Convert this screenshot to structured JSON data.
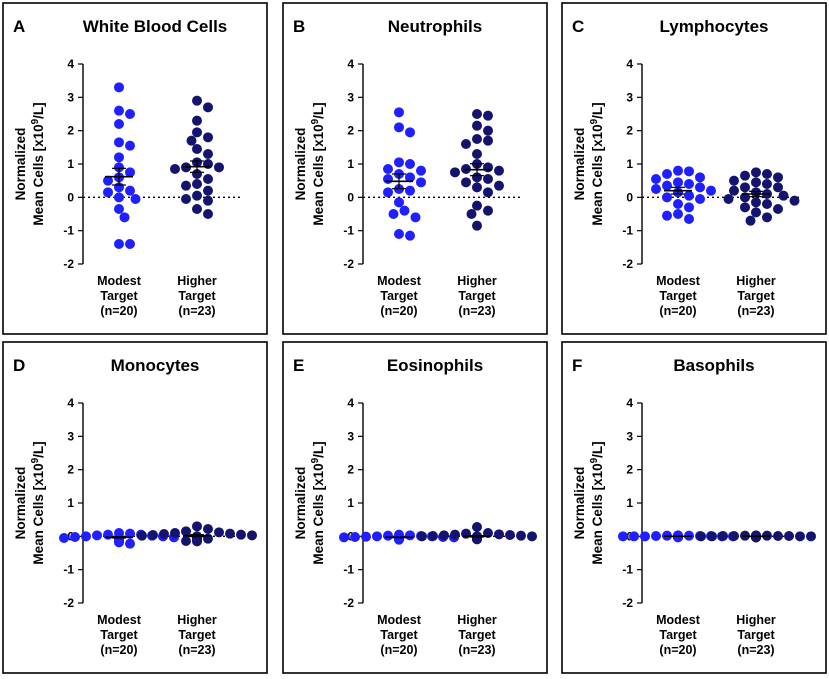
{
  "colors": {
    "modest": "#1f1fff",
    "higher": "#14146e"
  },
  "chart_data": [
    {
      "type": "scatter",
      "letter": "A",
      "title": "White Blood Cells",
      "ylabel": [
        "Normalized",
        "Mean Cells [x10",
        "9",
        "/L]"
      ],
      "ylim": [
        -2,
        4
      ],
      "yticks": [
        "4",
        "3",
        "2",
        "1",
        "0",
        "-1",
        "-2"
      ],
      "categories": [
        [
          "Modest",
          "Target",
          "(n=20)"
        ],
        [
          "Higher",
          "Target",
          "(n=23)"
        ]
      ],
      "series": [
        {
          "name": "Modest Target",
          "mean": 0.62,
          "sem": 0.25,
          "values": [
            3.3,
            2.6,
            2.5,
            2.2,
            1.65,
            1.55,
            1.2,
            0.9,
            0.75,
            0.6,
            0.5,
            0.3,
            0.2,
            0.15,
            0.0,
            -0.05,
            -0.35,
            -0.6,
            -1.4,
            -1.4
          ]
        },
        {
          "name": "Higher Target",
          "mean": 0.92,
          "sem": 0.17,
          "values": [
            2.9,
            2.7,
            2.3,
            1.95,
            1.8,
            1.7,
            1.45,
            1.3,
            1.05,
            1.0,
            0.9,
            0.9,
            0.85,
            0.7,
            0.55,
            0.4,
            0.35,
            0.2,
            0.05,
            -0.05,
            -0.1,
            -0.35,
            -0.5
          ]
        }
      ]
    },
    {
      "type": "scatter",
      "letter": "B",
      "title": "Neutrophils",
      "ylabel": [
        "Normalized",
        "Mean Cells [x10",
        "9",
        "/L]"
      ],
      "ylim": [
        -2,
        4
      ],
      "yticks": [
        "4",
        "3",
        "2",
        "1",
        "0",
        "-1",
        "-2"
      ],
      "categories": [
        [
          "Modest",
          "Target",
          "(n=20)"
        ],
        [
          "Higher",
          "Target",
          "(n=23)"
        ]
      ],
      "series": [
        {
          "name": "Modest Target",
          "mean": 0.48,
          "sem": 0.22,
          "values": [
            2.55,
            2.1,
            1.95,
            1.05,
            1.0,
            0.85,
            0.8,
            0.7,
            0.6,
            0.55,
            0.45,
            0.25,
            0.2,
            0.15,
            -0.15,
            -0.4,
            -0.5,
            -0.6,
            -1.1,
            -1.15
          ]
        },
        {
          "name": "Higher Target",
          "mean": 0.83,
          "sem": 0.18,
          "values": [
            2.5,
            2.45,
            2.15,
            2.0,
            1.75,
            1.7,
            1.6,
            1.3,
            1.0,
            0.9,
            0.85,
            0.8,
            0.75,
            0.6,
            0.55,
            0.45,
            0.35,
            0.3,
            0.15,
            -0.25,
            -0.4,
            -0.5,
            -0.85
          ]
        }
      ]
    },
    {
      "type": "scatter",
      "letter": "C",
      "title": "Lymphocytes",
      "ylabel": [
        "Normalized",
        "Mean Cells [x10",
        "9",
        "/L]"
      ],
      "ylim": [
        -2,
        4
      ],
      "yticks": [
        "4",
        "3",
        "2",
        "1",
        "0",
        "-1",
        "-2"
      ],
      "categories": [
        [
          "Modest",
          "Target",
          "(n=20)"
        ],
        [
          "Higher",
          "Target",
          "(n=23)"
        ]
      ],
      "series": [
        {
          "name": "Modest Target",
          "mean": 0.2,
          "sem": 0.1,
          "values": [
            0.8,
            0.78,
            0.7,
            0.6,
            0.55,
            0.45,
            0.4,
            0.35,
            0.3,
            0.25,
            0.2,
            0.15,
            0.05,
            0.0,
            -0.05,
            -0.2,
            -0.3,
            -0.5,
            -0.55,
            -0.65
          ]
        },
        {
          "name": "Higher Target",
          "mean": 0.1,
          "sem": 0.08,
          "values": [
            0.75,
            0.7,
            0.65,
            0.6,
            0.5,
            0.45,
            0.4,
            0.3,
            0.3,
            0.2,
            0.15,
            0.1,
            0.05,
            0.0,
            -0.05,
            -0.1,
            -0.15,
            -0.2,
            -0.3,
            -0.35,
            -0.45,
            -0.6,
            -0.7
          ]
        }
      ]
    },
    {
      "type": "scatter",
      "letter": "D",
      "title": "Monocytes",
      "ylabel": [
        "Normalized",
        "Mean Cells [x10",
        "9",
        "/L]"
      ],
      "ylim": [
        -2,
        4
      ],
      "yticks": [
        "4",
        "3",
        "2",
        "1",
        "0",
        "-1",
        "-2"
      ],
      "categories": [
        [
          "Modest",
          "Target",
          "(n=20)"
        ],
        [
          "Higher",
          "Target",
          "(n=23)"
        ]
      ],
      "series": [
        {
          "name": "Modest Target",
          "mean": -0.03,
          "sem": 0.02,
          "values": [
            0.1,
            0.08,
            0.05,
            0.05,
            0.03,
            0.02,
            0.0,
            0.0,
            -0.02,
            -0.03,
            -0.05,
            -0.05,
            -0.07,
            -0.08,
            -0.1,
            -0.1,
            -0.12,
            -0.15,
            -0.18,
            -0.22
          ]
        },
        {
          "name": "Higher Target",
          "mean": 0.02,
          "sem": 0.03,
          "values": [
            0.3,
            0.22,
            0.15,
            0.12,
            0.1,
            0.08,
            0.07,
            0.05,
            0.04,
            0.03,
            0.02,
            0.0,
            0.0,
            -0.02,
            -0.03,
            -0.05,
            -0.05,
            -0.07,
            -0.08,
            -0.1,
            -0.12,
            -0.14,
            -0.15
          ]
        }
      ]
    },
    {
      "type": "scatter",
      "letter": "E",
      "title": "Eosinophils",
      "ylabel": [
        "Normalized",
        "Mean Cells [x10",
        "9",
        "/L]"
      ],
      "ylim": [
        -2,
        4
      ],
      "yticks": [
        "4",
        "3",
        "2",
        "1",
        "0",
        "-1",
        "-2"
      ],
      "categories": [
        [
          "Modest",
          "Target",
          "(n=20)"
        ],
        [
          "Higher",
          "Target",
          "(n=23)"
        ]
      ],
      "series": [
        {
          "name": "Modest Target",
          "mean": -0.03,
          "sem": 0.01,
          "values": [
            0.05,
            0.03,
            0.02,
            0.01,
            0.0,
            0.0,
            -0.01,
            -0.02,
            -0.02,
            -0.03,
            -0.03,
            -0.04,
            -0.05,
            -0.05,
            -0.06,
            -0.06,
            -0.07,
            -0.08,
            -0.08,
            -0.1
          ]
        },
        {
          "name": "Higher Target",
          "mean": 0.0,
          "sem": 0.02,
          "values": [
            0.28,
            0.1,
            0.08,
            0.06,
            0.05,
            0.04,
            0.03,
            0.02,
            0.01,
            0.0,
            0.0,
            0.0,
            -0.01,
            -0.02,
            -0.02,
            -0.03,
            -0.04,
            -0.05,
            -0.05,
            -0.06,
            -0.07,
            -0.08,
            -0.09
          ]
        }
      ]
    },
    {
      "type": "scatter",
      "letter": "F",
      "title": "Basophils",
      "ylabel": [
        "Normalized",
        "Mean Cells [x10",
        "9",
        "/L]"
      ],
      "ylim": [
        -2,
        4
      ],
      "yticks": [
        "4",
        "3",
        "2",
        "1",
        "0",
        "-1",
        "-2"
      ],
      "categories": [
        [
          "Modest",
          "Target",
          "(n=20)"
        ],
        [
          "Higher",
          "Target",
          "(n=23)"
        ]
      ],
      "series": [
        {
          "name": "Modest Target",
          "mean": 0.0,
          "sem": 0.005,
          "values": [
            0.03,
            0.02,
            0.02,
            0.01,
            0.01,
            0.01,
            0.0,
            0.0,
            0.0,
            0.0,
            0.0,
            0.0,
            -0.01,
            -0.01,
            -0.01,
            -0.01,
            -0.02,
            -0.02,
            -0.02,
            -0.03
          ]
        },
        {
          "name": "Higher Target",
          "mean": 0.0,
          "sem": 0.005,
          "values": [
            0.03,
            0.02,
            0.02,
            0.01,
            0.01,
            0.01,
            0.01,
            0.0,
            0.0,
            0.0,
            0.0,
            0.0,
            0.0,
            -0.01,
            -0.01,
            -0.01,
            -0.01,
            -0.02,
            -0.02,
            -0.02,
            -0.03,
            -0.03,
            -0.03
          ]
        }
      ]
    }
  ]
}
